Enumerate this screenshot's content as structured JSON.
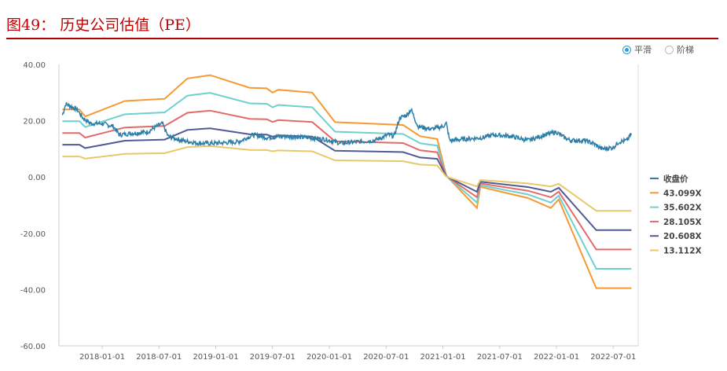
{
  "title": "图49：  历史公司估值（PE）",
  "options": {
    "smooth": "平滑",
    "step": "阶梯"
  },
  "chart_data": {
    "type": "line",
    "title": "历史公司估值（PE）",
    "ylim": [
      -60,
      40
    ],
    "yticks": [
      "40.00",
      "20.00",
      "0.00",
      "-20.00",
      "-40.00",
      "-60.00"
    ],
    "ytick_values": [
      40,
      20,
      0,
      -20,
      -40,
      -60
    ],
    "xticks": [
      "2018-01-01",
      "2018-07-01",
      "2019-01-01",
      "2019-07-01",
      "2020-01-01",
      "2020-07-01",
      "2021-01-01",
      "2021-07-01",
      "2022-01-01",
      "2022-07-01"
    ],
    "xtick_values": [
      2018,
      2018.5,
      2019,
      2019.5,
      2020,
      2020.5,
      2021,
      2021.5,
      2022,
      2022.5
    ],
    "xlim": [
      2017.63,
      2022.7
    ],
    "legend_position": "right",
    "close_series": {
      "name": "收盘价",
      "color": "#2e7fa8",
      "x": [
        2017.65,
        2017.68,
        2017.73,
        2017.78,
        2017.83,
        2017.9,
        2018.0,
        2018.1,
        2018.15,
        2018.25,
        2018.4,
        2018.48,
        2018.53,
        2018.58,
        2018.7,
        2018.85,
        2019.0,
        2019.2,
        2019.33,
        2019.45,
        2019.6,
        2019.8,
        2019.95,
        2020.1,
        2020.25,
        2020.4,
        2020.52,
        2020.57,
        2020.62,
        2020.68,
        2020.72,
        2020.78,
        2020.9,
        2021.0,
        2021.03,
        2021.06,
        2021.2,
        2021.35,
        2021.45,
        2021.6,
        2021.75,
        2021.9,
        2022.0,
        2022.05,
        2022.12,
        2022.25,
        2022.32,
        2022.4,
        2022.5,
        2022.55,
        2022.62,
        2022.66
      ],
      "values": [
        22,
        26,
        25,
        24,
        21,
        19,
        19,
        18,
        15,
        15.5,
        16,
        18,
        19,
        14.5,
        13,
        12,
        12,
        12.5,
        15,
        14,
        14.5,
        14,
        13.5,
        12,
        12.5,
        13,
        15,
        14.5,
        21,
        22,
        24,
        18,
        17,
        18,
        19,
        13,
        13.5,
        14,
        15,
        14.5,
        13,
        15,
        16,
        14.5,
        13,
        13,
        12,
        10,
        10.5,
        12.5,
        13,
        15.5
      ]
    },
    "eps_basis": {
      "x": [
        2017.65,
        2017.8,
        2017.85,
        2018.2,
        2018.55,
        2018.75,
        2018.95,
        2019.3,
        2019.45,
        2019.5,
        2019.55,
        2019.85,
        2020.05,
        2020.65,
        2020.8,
        2020.95,
        2021.03,
        2021.3,
        2021.33,
        2021.75,
        2021.95,
        2022.02,
        2022.35,
        2022.66
      ],
      "values_at_43_099x": [
        24,
        24,
        21.5,
        27,
        27.8,
        35,
        36.2,
        31.7,
        31.5,
        30,
        31,
        30,
        19.5,
        18.5,
        14.5,
        13.5,
        0.5,
        -11,
        -3.5,
        -7.5,
        -11,
        -8,
        -39.5,
        -39.5
      ]
    },
    "series": [
      {
        "name": "43.099X",
        "multiple": 43.099,
        "color": "#f59a32"
      },
      {
        "name": "35.602X",
        "multiple": 35.602,
        "color": "#6ed0cf"
      },
      {
        "name": "28.105X",
        "multiple": 28.105,
        "color": "#e46a6a"
      },
      {
        "name": "20.608X",
        "multiple": 20.608,
        "color": "#505a96"
      },
      {
        "name": "13.112X",
        "multiple": 13.112,
        "color": "#e8c86a"
      }
    ]
  }
}
